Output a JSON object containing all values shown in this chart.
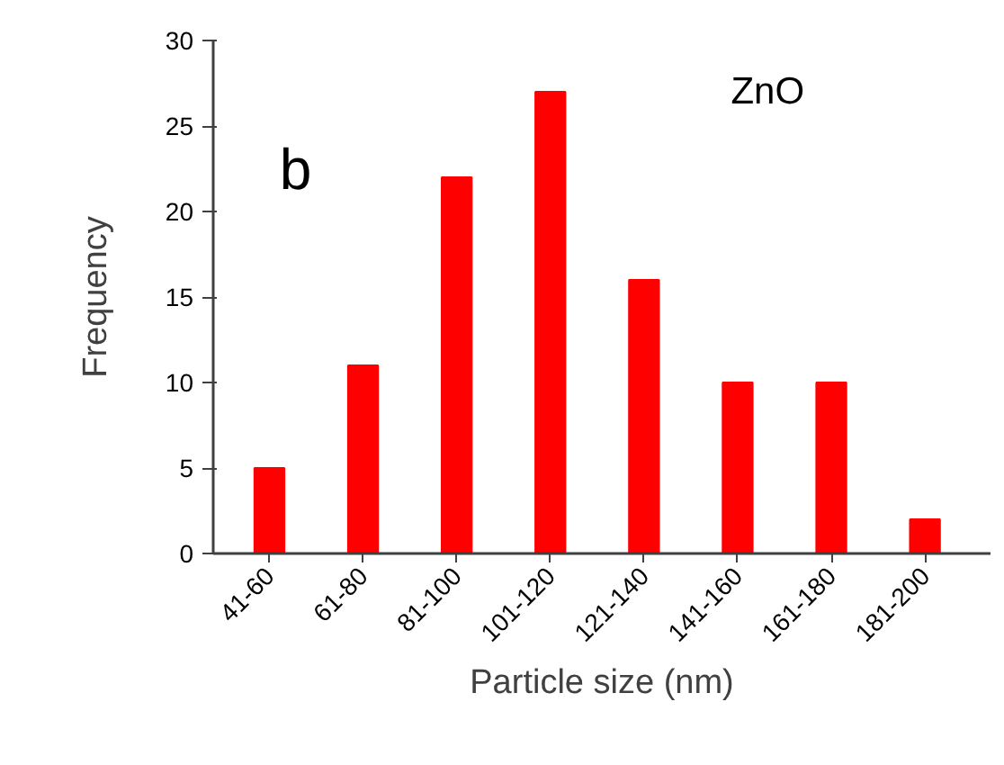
{
  "chart_data": {
    "type": "bar",
    "xlabel": "Particle size (nm)",
    "ylabel": "Frequency",
    "categories": [
      "41-60",
      "61-80",
      "81-100",
      "101-120",
      "121-140",
      "141-160",
      "161-180",
      "181-200"
    ],
    "values": [
      5,
      11,
      22,
      27,
      16,
      10,
      10,
      2
    ],
    "color": "#ff0000",
    "ylim": [
      0,
      30
    ],
    "yticks": [
      0,
      5,
      10,
      15,
      20,
      25,
      30
    ],
    "grid": false,
    "annotations": [
      "ZnO",
      "b"
    ]
  }
}
